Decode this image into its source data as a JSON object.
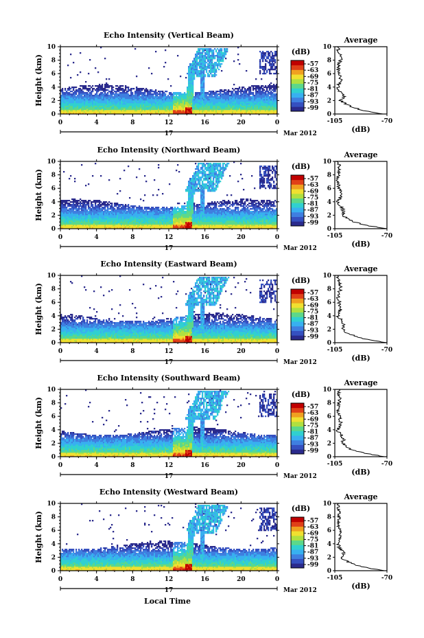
{
  "figure": {
    "colors": {
      "scale": [
        "#2a2a8c",
        "#3550c0",
        "#3f7fe0",
        "#38b0f0",
        "#30d0d0",
        "#5cd88a",
        "#b0e040",
        "#f0e030",
        "#f0a020",
        "#e04018",
        "#c00000"
      ],
      "background": "#ffffff",
      "line": "#000000"
    },
    "x_label": "Local Time",
    "date_label": "Mar 2012",
    "day_label": "17",
    "y_label": "Height (km)",
    "colorbar_unit": "(dB)",
    "colorbar_ticks": [
      "-57",
      "-63",
      "-69",
      "-75",
      "-81",
      "-87",
      "-93",
      "-99"
    ],
    "average_title": "Average",
    "average_xlabel": "(dB)",
    "average_xticks": [
      "-105",
      "-70"
    ],
    "average_xlim": [
      -105,
      -70
    ]
  },
  "chart_data": [
    {
      "type": "heatmap",
      "title": "Echo Intensity (Vertical Beam)",
      "xlabel": "",
      "ylabel": "Height (km)",
      "xlim": [
        0,
        24
      ],
      "ylim": [
        0,
        10
      ],
      "xticks": [
        "0",
        "4",
        "8",
        "12",
        "16",
        "20",
        "0"
      ],
      "yticks": [
        "0",
        "2",
        "4",
        "6",
        "8",
        "10"
      ],
      "colorbar_range": [
        -99,
        -57
      ],
      "average_profile": {
        "height_km": [
          0,
          0.5,
          1,
          1.5,
          2,
          2.5,
          3,
          3.5,
          4,
          5,
          6,
          7,
          8,
          9,
          10
        ],
        "db": [
          -72,
          -85,
          -93,
          -98,
          -101,
          -99,
          -100,
          -102,
          -103,
          -101,
          -102,
          -103,
          -101,
          -102,
          -103
        ]
      }
    },
    {
      "type": "heatmap",
      "title": "Echo Intensity (Northward Beam)",
      "xlabel": "",
      "ylabel": "Height (km)",
      "xlim": [
        0,
        24
      ],
      "ylim": [
        0,
        10
      ],
      "xticks": [
        "0",
        "4",
        "8",
        "12",
        "16",
        "20",
        "0"
      ],
      "yticks": [
        "0",
        "2",
        "4",
        "6",
        "8",
        "10"
      ],
      "colorbar_range": [
        -99,
        -57
      ],
      "average_profile": {
        "height_km": [
          0,
          0.5,
          1,
          1.5,
          2,
          2.5,
          3,
          3.5,
          4,
          5,
          6,
          7,
          8,
          9,
          10
        ],
        "db": [
          -70,
          -84,
          -92,
          -97,
          -100,
          -99,
          -100,
          -102,
          -103,
          -101,
          -102,
          -103,
          -102,
          -102,
          -103
        ]
      }
    },
    {
      "type": "heatmap",
      "title": "Echo Intensity (Eastward Beam)",
      "xlabel": "",
      "ylabel": "Height (km)",
      "xlim": [
        0,
        24
      ],
      "ylim": [
        0,
        10
      ],
      "xticks": [
        "0",
        "4",
        "8",
        "12",
        "16",
        "20",
        "0"
      ],
      "yticks": [
        "0",
        "2",
        "4",
        "6",
        "8",
        "10"
      ],
      "colorbar_range": [
        -99,
        -57
      ],
      "average_profile": {
        "height_km": [
          0,
          0.5,
          1,
          1.5,
          2,
          2.5,
          3,
          3.5,
          4,
          5,
          6,
          7,
          8,
          9,
          10
        ],
        "db": [
          -71,
          -84,
          -92,
          -97,
          -100,
          -99,
          -100,
          -101,
          -103,
          -101,
          -102,
          -103,
          -101,
          -102,
          -103
        ]
      }
    },
    {
      "type": "heatmap",
      "title": "Echo Intensity (Southward Beam)",
      "xlabel": "",
      "ylabel": "Height (km)",
      "xlim": [
        0,
        24
      ],
      "ylim": [
        0,
        10
      ],
      "xticks": [
        "0",
        "4",
        "8",
        "12",
        "16",
        "20",
        "0"
      ],
      "yticks": [
        "0",
        "2",
        "4",
        "6",
        "8",
        "10"
      ],
      "colorbar_range": [
        -99,
        -57
      ],
      "average_profile": {
        "height_km": [
          0,
          0.5,
          1,
          1.5,
          2,
          2.5,
          3,
          3.5,
          4,
          5,
          6,
          7,
          8,
          9,
          10
        ],
        "db": [
          -71,
          -85,
          -93,
          -98,
          -100,
          -99,
          -100,
          -102,
          -103,
          -101,
          -102,
          -103,
          -102,
          -102,
          -103
        ]
      }
    },
    {
      "type": "heatmap",
      "title": "Echo Intensity (Westward Beam)",
      "xlabel": "Local Time",
      "ylabel": "Height (km)",
      "xlim": [
        0,
        24
      ],
      "ylim": [
        0,
        10
      ],
      "xticks": [
        "0",
        "4",
        "8",
        "12",
        "16",
        "20",
        "0"
      ],
      "yticks": [
        "0",
        "2",
        "4",
        "6",
        "8",
        "10"
      ],
      "colorbar_range": [
        -99,
        -57
      ],
      "average_profile": {
        "height_km": [
          0,
          0.5,
          1,
          1.5,
          2,
          2.5,
          3,
          3.5,
          4,
          5,
          6,
          7,
          8,
          9,
          10
        ],
        "db": [
          -72,
          -85,
          -93,
          -98,
          -101,
          -99,
          -100,
          -102,
          -103,
          -101,
          -102,
          -103,
          -102,
          -102,
          -103
        ]
      }
    }
  ]
}
